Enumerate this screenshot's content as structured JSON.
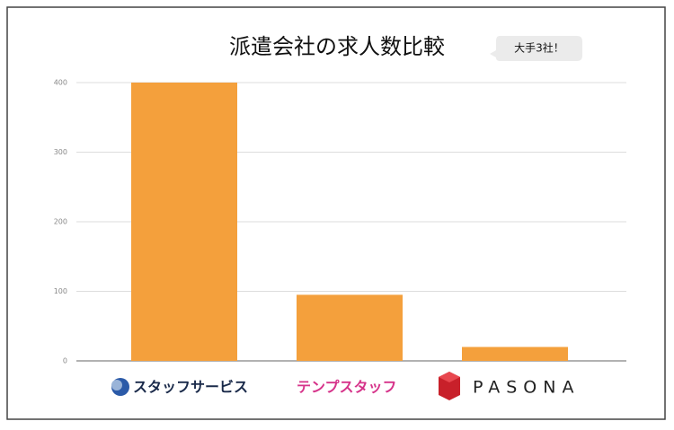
{
  "chart_data": {
    "type": "bar",
    "title": "派遣会社の求人数比較",
    "annotation": "大手3社！",
    "categories": [
      "スタッフサービス",
      "テンプスタッフ",
      "PASONA"
    ],
    "category_colors": [
      "#1a2a4a",
      "#d6338a",
      "#222222"
    ],
    "values": [
      400,
      95,
      20
    ],
    "color": "#f4a03c",
    "ylim": [
      0,
      400
    ],
    "yticks": [
      0,
      100,
      200,
      300,
      400
    ],
    "grid": true
  }
}
